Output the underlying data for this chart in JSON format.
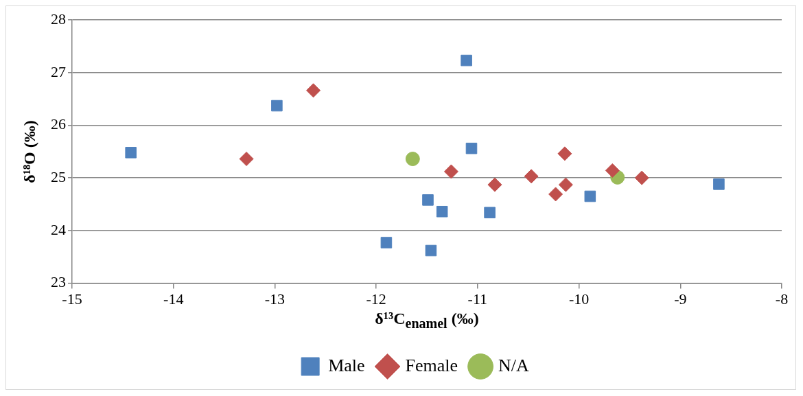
{
  "chart_data": {
    "type": "scatter",
    "xlabel": "δ¹³C$_{enamel}$ (‰)",
    "ylabel": "δ¹⁸O (‰)",
    "xlim": [
      -15,
      -8
    ],
    "xticks": [
      -15,
      -14,
      -13,
      -12,
      -11,
      -10,
      -9,
      -8
    ],
    "ylim": [
      23,
      28
    ],
    "yticks": [
      23,
      24,
      25,
      26,
      27,
      28
    ],
    "grid": "y",
    "legend": "bottom",
    "series": [
      {
        "name": "Male",
        "color": "#4f81bd",
        "marker": "square",
        "x": [
          -14.42,
          -12.98,
          -11.11,
          -11.06,
          -11.49,
          -11.35,
          -10.88,
          -11.46,
          -11.9,
          -9.89,
          -8.62
        ],
        "values": [
          25.48,
          26.37,
          27.23,
          25.56,
          24.58,
          24.36,
          24.34,
          23.62,
          23.77,
          24.65,
          24.88
        ]
      },
      {
        "name": "Female",
        "color": "#c0504d",
        "marker": "diamond",
        "x": [
          -12.62,
          -13.28,
          -11.26,
          -10.83,
          -10.47,
          -10.14,
          -10.23,
          -10.13,
          -9.67,
          -9.38
        ],
        "values": [
          26.66,
          25.36,
          25.12,
          24.87,
          25.03,
          25.46,
          24.69,
          24.87,
          25.14,
          25.0
        ]
      },
      {
        "name": "N/A",
        "color": "#9bbb59",
        "marker": "circle",
        "x": [
          -11.64,
          -9.62
        ],
        "values": [
          25.36,
          25.01
        ]
      }
    ]
  }
}
